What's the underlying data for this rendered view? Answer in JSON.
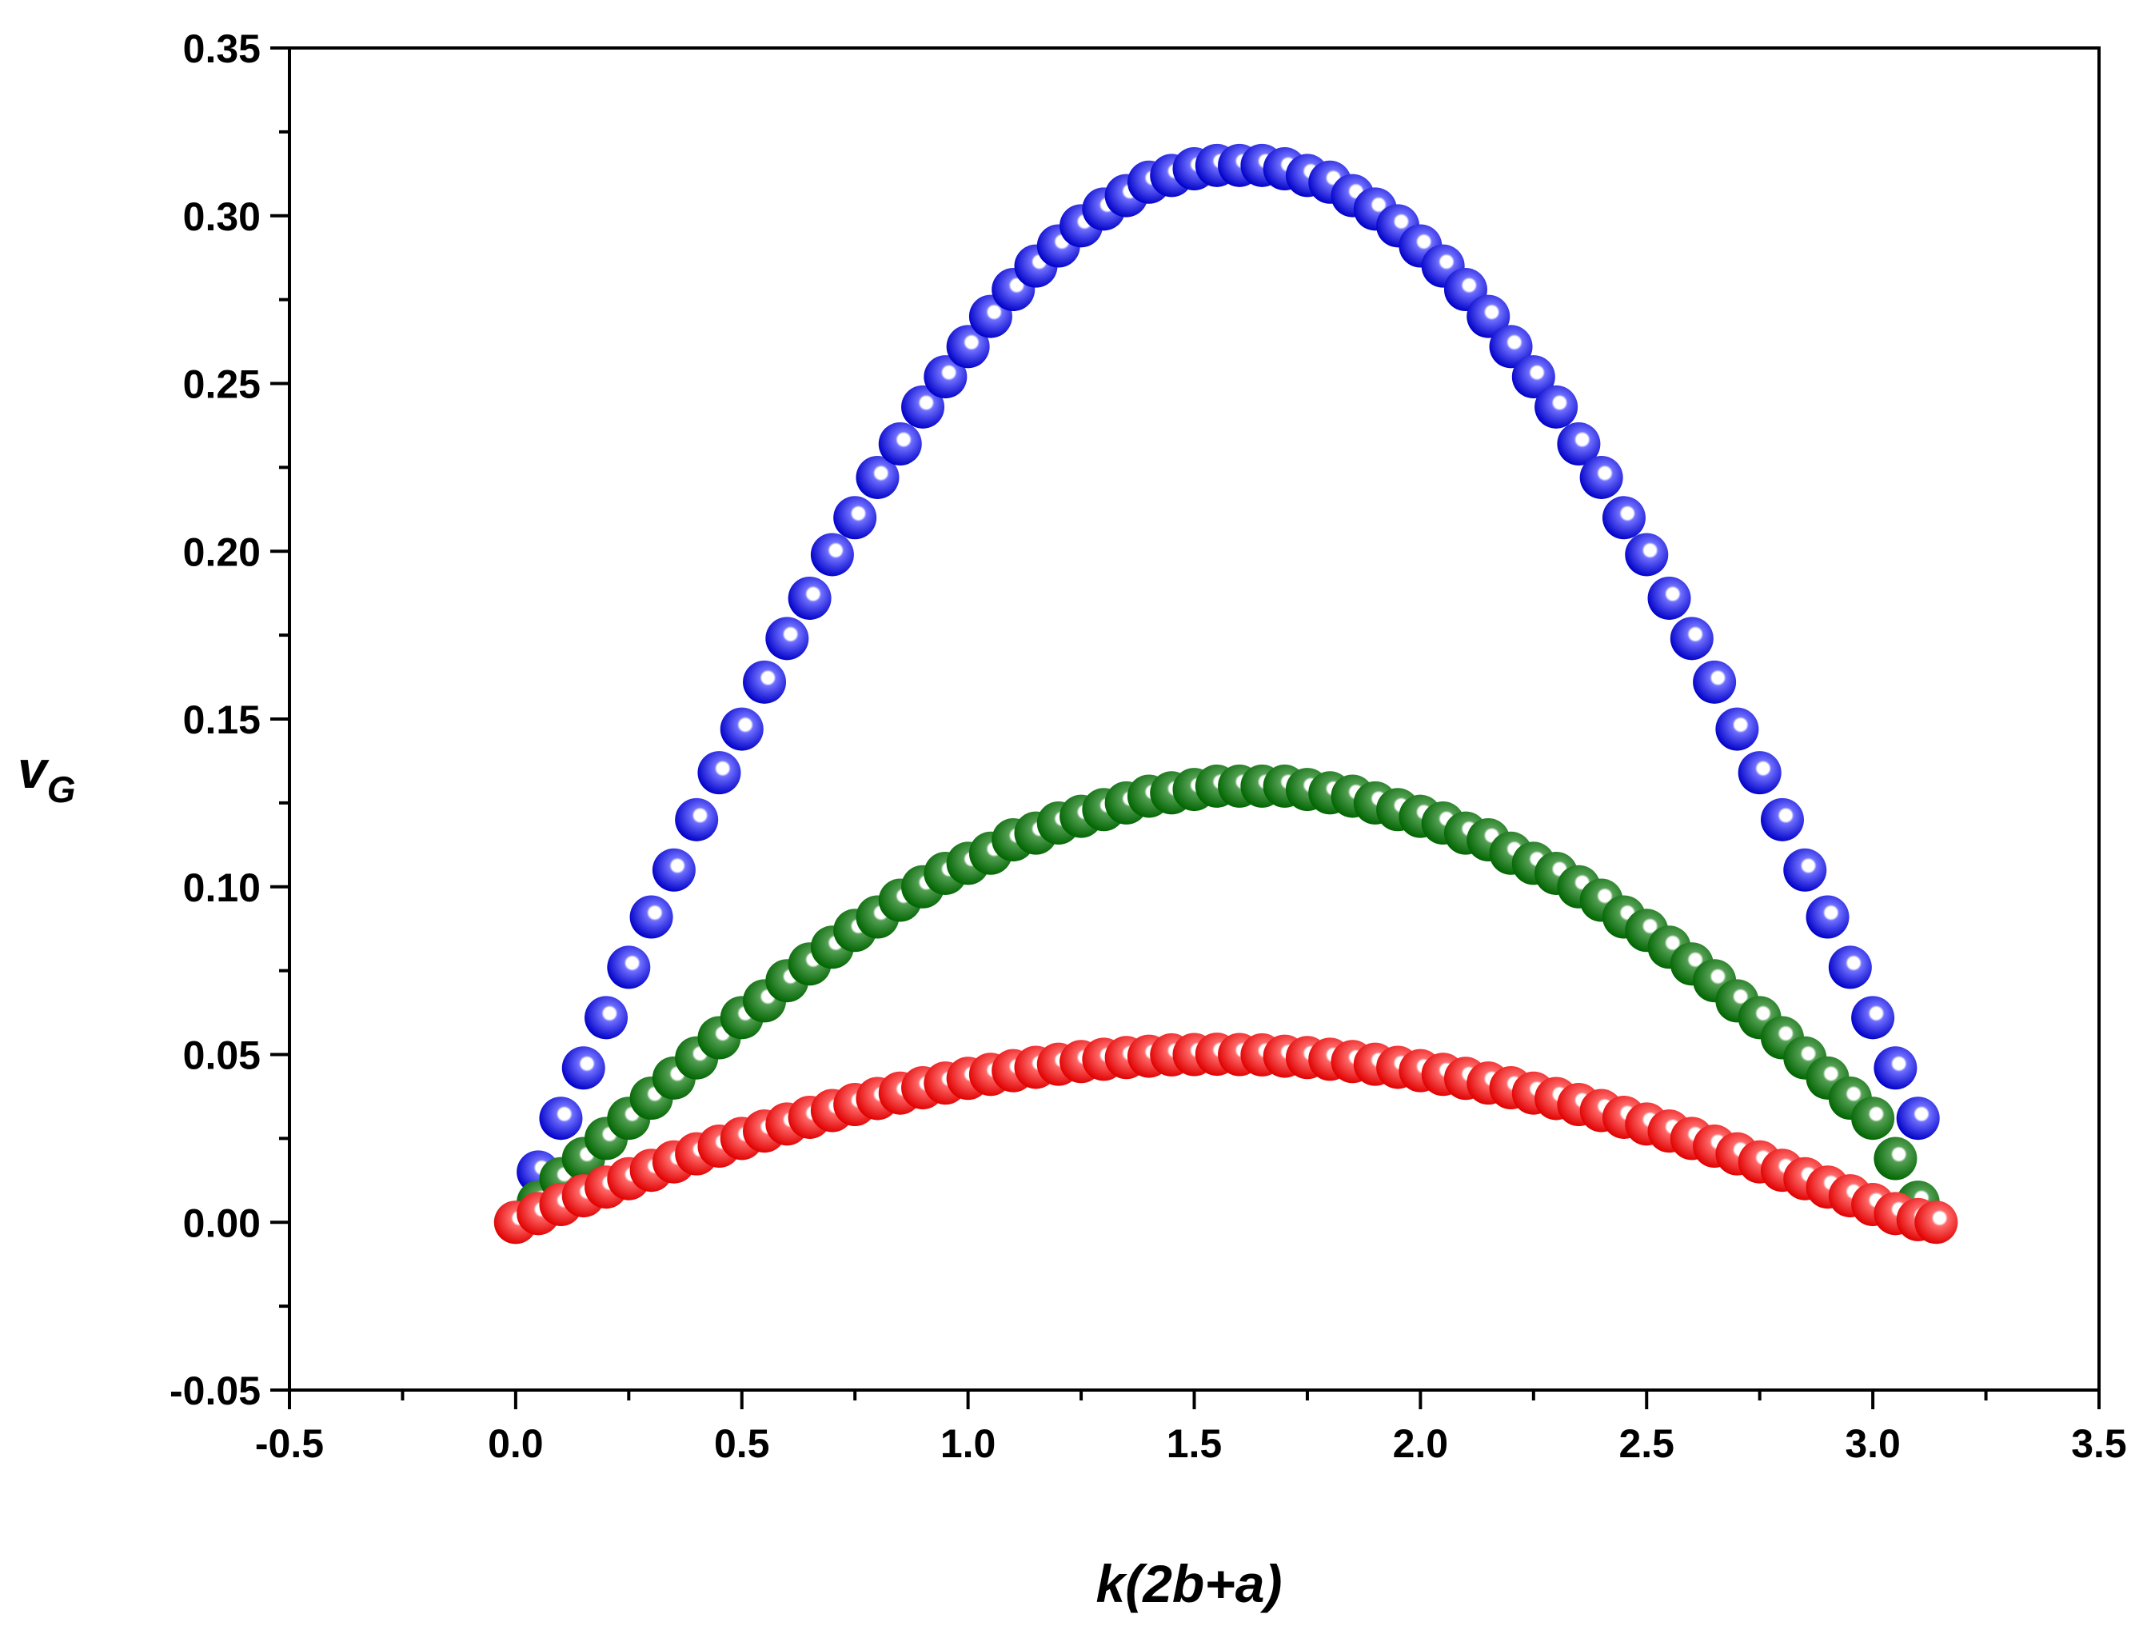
{
  "chart_data": {
    "type": "scatter",
    "title": "",
    "xlabel": "k(2b+a)",
    "ylabel_main": "v",
    "ylabel_sub": "G",
    "xlim": [
      -0.5,
      3.5
    ],
    "ylim": [
      -0.05,
      0.35
    ],
    "x_ticks": [
      -0.5,
      0.0,
      0.5,
      1.0,
      1.5,
      2.0,
      2.5,
      3.0,
      3.5
    ],
    "x_tick_labels": [
      "-0.5",
      "0.0",
      "0.5",
      "1.0",
      "1.5",
      "2.0",
      "2.5",
      "3.0",
      "3.5"
    ],
    "y_ticks": [
      -0.05,
      0.0,
      0.05,
      0.1,
      0.15,
      0.2,
      0.25,
      0.3,
      0.35
    ],
    "y_tick_labels": [
      "-0.05",
      "0.00",
      "0.05",
      "0.10",
      "0.15",
      "0.20",
      "0.25",
      "0.30",
      "0.35"
    ],
    "grid": false,
    "legend": "none",
    "series": [
      {
        "name": "blue",
        "color": "#0000ee",
        "x": [
          0.05,
          0.1,
          0.15,
          0.2,
          0.25,
          0.3,
          0.35,
          0.4,
          0.45,
          0.5,
          0.55,
          0.6,
          0.65,
          0.7,
          0.75,
          0.8,
          0.85,
          0.9,
          0.95,
          1.0,
          1.05,
          1.1,
          1.15,
          1.2,
          1.25,
          1.3,
          1.35,
          1.4,
          1.45,
          1.5,
          1.55,
          1.6,
          1.65,
          1.7,
          1.75,
          1.8,
          1.85,
          1.9,
          1.95,
          2.0,
          2.05,
          2.1,
          2.15,
          2.2,
          2.25,
          2.3,
          2.35,
          2.4,
          2.45,
          2.5,
          2.55,
          2.6,
          2.65,
          2.7,
          2.75,
          2.8,
          2.85,
          2.9,
          2.95,
          3.0,
          3.05,
          3.1
        ],
        "y": [
          0.015,
          0.031,
          0.046,
          0.061,
          0.076,
          0.091,
          0.105,
          0.12,
          0.134,
          0.147,
          0.161,
          0.174,
          0.186,
          0.199,
          0.21,
          0.222,
          0.232,
          0.243,
          0.252,
          0.261,
          0.27,
          0.278,
          0.285,
          0.291,
          0.297,
          0.302,
          0.306,
          0.31,
          0.312,
          0.314,
          0.315,
          0.315,
          0.315,
          0.314,
          0.312,
          0.31,
          0.306,
          0.302,
          0.297,
          0.291,
          0.285,
          0.278,
          0.27,
          0.261,
          0.252,
          0.243,
          0.232,
          0.222,
          0.21,
          0.199,
          0.186,
          0.174,
          0.161,
          0.147,
          0.134,
          0.12,
          0.105,
          0.091,
          0.076,
          0.061,
          0.046,
          0.031
        ]
      },
      {
        "name": "green",
        "color": "#008000",
        "x": [
          0.0,
          0.05,
          0.1,
          0.15,
          0.2,
          0.25,
          0.3,
          0.35,
          0.4,
          0.45,
          0.5,
          0.55,
          0.6,
          0.65,
          0.7,
          0.75,
          0.8,
          0.85,
          0.9,
          0.95,
          1.0,
          1.05,
          1.1,
          1.15,
          1.2,
          1.25,
          1.3,
          1.35,
          1.4,
          1.45,
          1.5,
          1.55,
          1.6,
          1.65,
          1.7,
          1.75,
          1.8,
          1.85,
          1.9,
          1.95,
          2.0,
          2.05,
          2.1,
          2.15,
          2.2,
          2.25,
          2.3,
          2.35,
          2.4,
          2.45,
          2.5,
          2.55,
          2.6,
          2.65,
          2.7,
          2.75,
          2.8,
          2.85,
          2.9,
          2.95,
          3.0,
          3.05,
          3.1
        ],
        "y": [
          0.0,
          0.006,
          0.013,
          0.019,
          0.025,
          0.031,
          0.037,
          0.043,
          0.049,
          0.055,
          0.061,
          0.066,
          0.072,
          0.077,
          0.082,
          0.087,
          0.091,
          0.096,
          0.1,
          0.104,
          0.107,
          0.11,
          0.114,
          0.116,
          0.119,
          0.121,
          0.123,
          0.125,
          0.127,
          0.128,
          0.129,
          0.13,
          0.13,
          0.13,
          0.13,
          0.129,
          0.128,
          0.127,
          0.125,
          0.123,
          0.121,
          0.119,
          0.116,
          0.114,
          0.11,
          0.107,
          0.104,
          0.1,
          0.096,
          0.091,
          0.087,
          0.082,
          0.077,
          0.072,
          0.066,
          0.061,
          0.055,
          0.049,
          0.043,
          0.037,
          0.031,
          0.019,
          0.006
        ]
      },
      {
        "name": "red",
        "color": "#ee0000",
        "x": [
          0.0,
          0.05,
          0.1,
          0.15,
          0.2,
          0.25,
          0.3,
          0.35,
          0.4,
          0.45,
          0.5,
          0.55,
          0.6,
          0.65,
          0.7,
          0.75,
          0.8,
          0.85,
          0.9,
          0.95,
          1.0,
          1.05,
          1.1,
          1.15,
          1.2,
          1.25,
          1.3,
          1.35,
          1.4,
          1.45,
          1.5,
          1.55,
          1.6,
          1.65,
          1.7,
          1.75,
          1.8,
          1.85,
          1.9,
          1.95,
          2.0,
          2.05,
          2.1,
          2.15,
          2.2,
          2.25,
          2.3,
          2.35,
          2.4,
          2.45,
          2.5,
          2.55,
          2.6,
          2.65,
          2.7,
          2.75,
          2.8,
          2.85,
          2.9,
          2.95,
          3.0,
          3.05,
          3.1,
          3.14
        ],
        "y": [
          0.0,
          0.0026,
          0.0053,
          0.0079,
          0.0105,
          0.013,
          0.0155,
          0.018,
          0.0204,
          0.0227,
          0.025,
          0.0272,
          0.0293,
          0.0313,
          0.0333,
          0.0351,
          0.0369,
          0.0385,
          0.0401,
          0.0415,
          0.0429,
          0.0441,
          0.0452,
          0.0462,
          0.0471,
          0.0479,
          0.0486,
          0.0491,
          0.0495,
          0.0499,
          0.05,
          0.0501,
          0.05,
          0.0499,
          0.0495,
          0.0491,
          0.0486,
          0.0479,
          0.0471,
          0.0462,
          0.0452,
          0.0441,
          0.0429,
          0.0415,
          0.0401,
          0.0385,
          0.0369,
          0.0351,
          0.0333,
          0.0313,
          0.0293,
          0.0272,
          0.025,
          0.0227,
          0.0204,
          0.018,
          0.0155,
          0.013,
          0.0105,
          0.0079,
          0.0053,
          0.0026,
          0.0008,
          0.0
        ]
      }
    ]
  }
}
